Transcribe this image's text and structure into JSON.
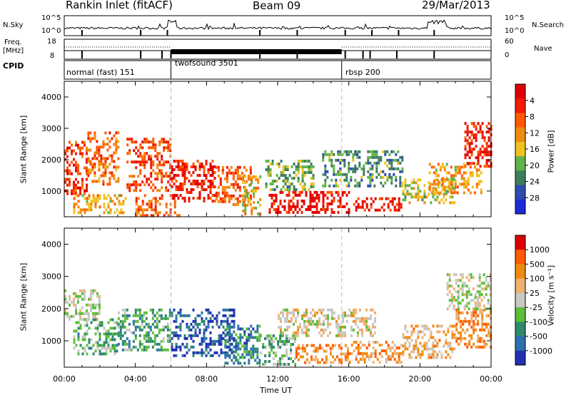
{
  "header": {
    "station": "Rankin Inlet (fitACF)",
    "beam": "Beam 09",
    "date": "29/Mar/2013"
  },
  "strips": {
    "nsky_label": "N.Sky",
    "nsky_ticks": [
      "10^5",
      "10^0"
    ],
    "nsearch_label": "N.Search",
    "nsearch_ticks": [
      "10^5",
      "10^0"
    ],
    "freq_label": "Freq.",
    "freq_unit": "[MHz]",
    "freq_ticks": [
      "18",
      "8"
    ],
    "nave_label": "Nave",
    "nave_ticks": [
      "60",
      "0"
    ],
    "cpid_label": "CPID",
    "modes": [
      {
        "name": "normal (fast) 151",
        "start_hour": 0
      },
      {
        "name": "twofsound 3501",
        "start_hour": 6
      },
      {
        "name": "rbsp 200",
        "start_hour": 15.6
      }
    ]
  },
  "chart_data": [
    {
      "type": "heatmap",
      "panel": "power",
      "ylabel": "Slant Range [km]",
      "yticks": [
        "1000",
        "2000",
        "3000",
        "4000"
      ],
      "ylim": [
        180,
        4500
      ],
      "xlim_hours": [
        0,
        24
      ],
      "colorbar_label": "Power [dB]",
      "colorbar_ticks": [
        "4",
        "8",
        "12",
        "16",
        "20",
        "24",
        "28"
      ],
      "colorbar_colors": [
        "#1a2bd8",
        "#2e4bb0",
        "#3e7d5a",
        "#5fb34a",
        "#f0c020",
        "#f08a10",
        "#ff5a00",
        "#f21c00",
        "#e00000"
      ],
      "regions": [
        {
          "t0": 0.0,
          "t1": 1.3,
          "r0": 900,
          "r1": 2600,
          "level": 0.85
        },
        {
          "t0": 1.3,
          "t1": 3.0,
          "r0": 1200,
          "r1": 2900,
          "level": 0.7
        },
        {
          "t0": 0.5,
          "t1": 3.5,
          "r0": 350,
          "r1": 900,
          "level": 0.6
        },
        {
          "t0": 3.5,
          "t1": 6.0,
          "r0": 1000,
          "r1": 2700,
          "level": 0.8
        },
        {
          "t0": 4.0,
          "t1": 6.5,
          "r0": 250,
          "r1": 900,
          "level": 0.75
        },
        {
          "t0": 6.0,
          "t1": 8.5,
          "r0": 700,
          "r1": 2000,
          "level": 0.9
        },
        {
          "t0": 8.5,
          "t1": 10.5,
          "r0": 600,
          "r1": 1800,
          "level": 0.75
        },
        {
          "t0": 10.0,
          "t1": 11.0,
          "r0": 250,
          "r1": 1500,
          "level": 0.55
        },
        {
          "t0": 11.3,
          "t1": 14.0,
          "r0": 1000,
          "r1": 2000,
          "level": 0.35
        },
        {
          "t0": 11.5,
          "t1": 16.0,
          "r0": 300,
          "r1": 1000,
          "level": 0.95
        },
        {
          "t0": 16.0,
          "t1": 19.0,
          "r0": 350,
          "r1": 800,
          "level": 0.9
        },
        {
          "t0": 14.5,
          "t1": 19.0,
          "r0": 1200,
          "r1": 2300,
          "level": 0.3
        },
        {
          "t0": 19.0,
          "t1": 22.0,
          "r0": 600,
          "r1": 1400,
          "level": 0.45
        },
        {
          "t0": 20.5,
          "t1": 23.5,
          "r0": 900,
          "r1": 1900,
          "level": 0.6
        },
        {
          "t0": 22.5,
          "t1": 24.0,
          "r0": 1800,
          "r1": 3200,
          "level": 0.9
        }
      ]
    },
    {
      "type": "heatmap",
      "panel": "velocity",
      "ylabel": "Slant Range [km]",
      "yticks": [
        "1000",
        "2000",
        "3000",
        "4000"
      ],
      "ylim": [
        180,
        4500
      ],
      "xlim_hours": [
        0,
        24
      ],
      "colorbar_label": "Velocity [m s⁻¹]",
      "colorbar_ticks": [
        "1000",
        "500",
        "100",
        "25",
        "-25",
        "-100",
        "-500",
        "-1000"
      ],
      "colorbar_colors": [
        "#2030b0",
        "#2e6fb0",
        "#2e8a6a",
        "#5abf3a",
        "#c8c8c4",
        "#f0b070",
        "#f08a10",
        "#ff5a00",
        "#e00000"
      ],
      "regions": [
        {
          "t0": 0.0,
          "t1": 2.0,
          "r0": 1700,
          "r1": 2600,
          "level": 0.5
        },
        {
          "t0": 0.5,
          "t1": 3.0,
          "r0": 600,
          "r1": 1700,
          "level": 0.35
        },
        {
          "t0": 3.0,
          "t1": 6.0,
          "r0": 700,
          "r1": 2000,
          "level": 0.3
        },
        {
          "t0": 6.0,
          "t1": 9.5,
          "r0": 500,
          "r1": 2000,
          "level": 0.08
        },
        {
          "t0": 9.0,
          "t1": 11.0,
          "r0": 300,
          "r1": 1500,
          "level": 0.2
        },
        {
          "t0": 11.0,
          "t1": 13.0,
          "r0": 300,
          "r1": 1200,
          "level": 0.35
        },
        {
          "t0": 13.0,
          "t1": 16.0,
          "r0": 300,
          "r1": 900,
          "level": 0.75
        },
        {
          "t0": 12.0,
          "t1": 17.5,
          "r0": 1200,
          "r1": 2000,
          "level": 0.55
        },
        {
          "t0": 16.0,
          "t1": 19.0,
          "r0": 350,
          "r1": 1000,
          "level": 0.7
        },
        {
          "t0": 19.0,
          "t1": 22.0,
          "r0": 500,
          "r1": 1500,
          "level": 0.65
        },
        {
          "t0": 22.0,
          "t1": 24.0,
          "r0": 800,
          "r1": 2000,
          "level": 0.75
        },
        {
          "t0": 21.5,
          "t1": 24.0,
          "r0": 2000,
          "r1": 3100,
          "level": 0.5
        }
      ]
    }
  ],
  "xaxis": {
    "title": "Time UT",
    "ticks": [
      "00:00",
      "04:00",
      "08:00",
      "12:00",
      "16:00",
      "20:00",
      "00:00"
    ]
  }
}
